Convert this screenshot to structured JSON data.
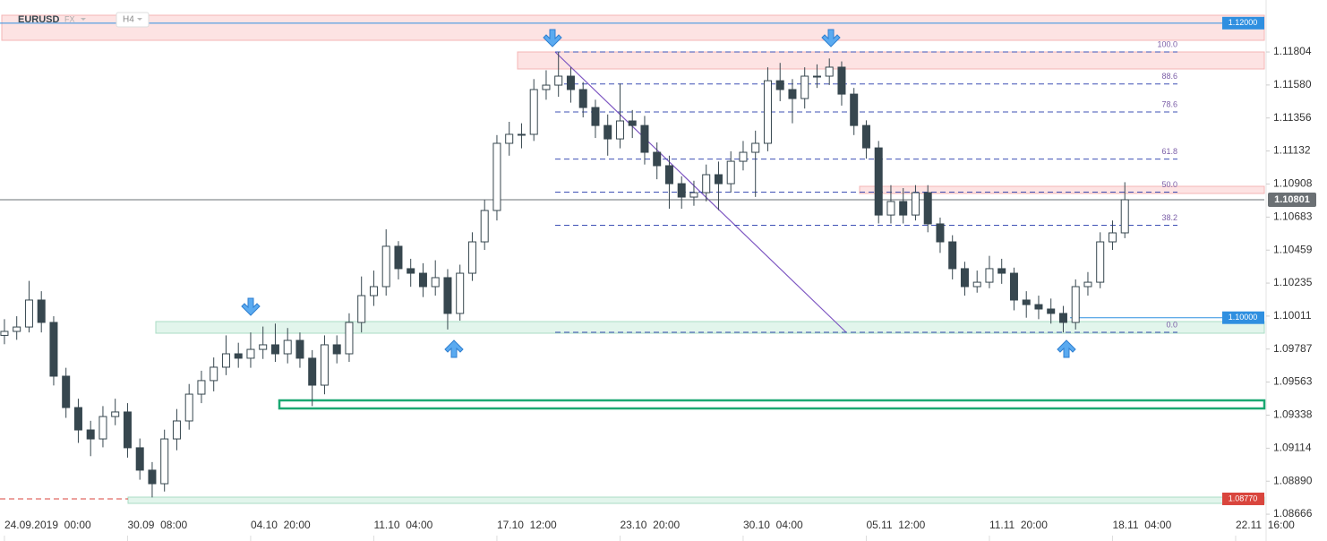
{
  "header": {
    "symbol": "EURUSD",
    "market": "FX",
    "interval": "H4"
  },
  "chart_data": {
    "type": "candlestick",
    "color": "#37474f",
    "ylim": [
      1.08484,
      1.12157
    ],
    "yticks": [
      1.11804,
      {
        "value": 1.1158,
        "label": "1.11580"
      },
      1.11356,
      1.11132,
      1.10908,
      1.10683,
      1.10459,
      1.10235,
      1.10011,
      1.09787,
      1.09563,
      1.09338,
      1.09114,
      {
        "value": 1.0889,
        "label": "1.08890"
      },
      1.08666
    ],
    "xlim": [
      -0.36,
      102.33
    ],
    "xticks": [
      {
        "value": 0,
        "label": "24.09.2019  00:00"
      },
      {
        "value": 10,
        "label": "30.09  08:00"
      },
      {
        "value": 20,
        "label": "04.10  20:00"
      },
      {
        "value": 30,
        "label": "11.10  04:00"
      },
      {
        "value": 40,
        "label": "17.10  12:00"
      },
      {
        "value": 50,
        "label": "23.10  20:00"
      },
      {
        "value": 60,
        "label": "30.10  04:00"
      },
      {
        "value": 70,
        "label": "05.11  12:00"
      },
      {
        "value": 80,
        "label": "11.11  20:00"
      },
      {
        "value": 90,
        "label": "18.11  04:00"
      },
      {
        "value": 100,
        "label": "22.11  16:00"
      }
    ],
    "open": [
      1.0988,
      1.09907,
      1.09937,
      1.1012,
      1.09968,
      1.09603,
      1.0939,
      1.09238,
      1.09177,
      1.09329,
      1.0936,
      1.09117,
      1.08965,
      1.08873,
      1.09177,
      1.09299,
      1.09481,
      1.09573,
      1.09664,
      1.09755,
      1.09725,
      1.09785,
      1.09816,
      1.09755,
      1.09846,
      1.09725,
      1.09542,
      1.09816,
      1.09755,
      1.09968,
      1.1015,
      1.10211,
      1.10485,
      1.10333,
      1.10302,
      1.10211,
      1.10272,
      1.10029,
      1.10302,
      1.10515,
      1.10728,
      1.11184,
      1.11245,
      1.11245,
      1.11549,
      1.11579,
      1.1164,
      1.11549,
      1.11427,
      1.11305,
      1.11214,
      1.11336,
      1.11305,
      1.11123,
      1.11032,
      1.1091,
      1.10819,
      1.10849,
      1.10971,
      1.1091,
      1.11062,
      1.11123,
      1.11184,
      1.11609,
      1.11549,
      1.11488,
      1.1164,
      1.1164,
      1.11701,
      1.11518,
      1.11305,
      1.11153,
      1.10697,
      1.10789,
      1.10697,
      1.10849,
      1.10637,
      1.10515,
      1.10333,
      1.10211,
      1.10241,
      1.10333,
      1.10302,
      1.1012,
      1.10089,
      1.10059,
      1.10029,
      1.09968,
      1.10211,
      1.10241,
      1.10515,
      1.10576
    ],
    "high": [
      1.0999,
      1.1001,
      1.1025,
      1.1018,
      1.1001,
      1.0966,
      1.0945,
      1.093,
      1.094,
      1.0945,
      1.0942,
      1.0918,
      1.0902,
      1.0924,
      1.0938,
      1.0955,
      1.0964,
      1.0973,
      1.0988,
      1.0983,
      1.099,
      1.0994,
      1.0996,
      1.0993,
      1.099,
      1.0978,
      1.0988,
      1.0988,
      1.1003,
      1.1028,
      1.1032,
      1.106,
      1.1052,
      1.104,
      1.1037,
      1.1039,
      1.1033,
      1.1036,
      1.1058,
      1.108,
      1.1124,
      1.1133,
      1.1132,
      1.1162,
      1.1168,
      1.11804,
      1.117,
      1.116,
      1.1148,
      1.1138,
      1.1159,
      1.1141,
      1.1137,
      1.1119,
      1.111,
      1.1096,
      1.1093,
      1.1104,
      1.1106,
      1.1113,
      1.112,
      1.1127,
      1.117,
      1.1173,
      1.1162,
      1.117,
      1.1172,
      1.1176,
      1.1174,
      1.1156,
      1.1134,
      1.112,
      1.109,
      1.1088,
      1.109,
      1.109,
      1.1068,
      1.1056,
      1.1038,
      1.1032,
      1.1042,
      1.104,
      1.1034,
      1.1018,
      1.1015,
      1.1013,
      1.1008,
      1.1026,
      1.1031,
      1.1058,
      1.1066,
      1.1092
    ],
    "low": [
      1.0982,
      1.0985,
      1.099,
      1.099,
      1.0954,
      1.0932,
      1.0915,
      1.0906,
      1.0912,
      1.0927,
      1.0905,
      1.089,
      1.0878,
      1.0882,
      1.091,
      1.0924,
      1.0942,
      1.095,
      1.0961,
      1.0966,
      1.0966,
      1.0972,
      1.097,
      1.0969,
      1.0966,
      1.094,
      1.0948,
      1.0969,
      1.097,
      1.099,
      1.1008,
      1.1015,
      1.1026,
      1.1021,
      1.1014,
      1.1015,
      1.0992,
      1.0998,
      1.1025,
      1.1046,
      1.1066,
      1.111,
      1.1115,
      1.112,
      1.1148,
      1.115,
      1.1146,
      1.1136,
      1.1122,
      1.111,
      1.1115,
      1.1122,
      1.1104,
      1.1094,
      1.1074,
      1.1074,
      1.1076,
      1.1079,
      1.1073,
      1.1085,
      1.11,
      1.1082,
      1.1113,
      1.1147,
      1.1132,
      1.1142,
      1.1156,
      1.1158,
      1.1144,
      1.1124,
      1.1108,
      1.1064,
      1.1064,
      1.1064,
      1.1066,
      1.1058,
      1.1044,
      1.1026,
      1.1015,
      1.1017,
      1.102,
      1.1023,
      1.1005,
      1.1,
      1.0999,
      1.0996,
      1.099,
      1.0992,
      1.1015,
      1.102,
      1.1046,
      1.1054
    ],
    "close": [
      1.09907,
      1.09937,
      1.1012,
      1.09968,
      1.09603,
      1.0939,
      1.09238,
      1.09177,
      1.09329,
      1.0936,
      1.09117,
      1.08965,
      1.08873,
      1.09177,
      1.09299,
      1.09481,
      1.09573,
      1.09664,
      1.09755,
      1.09725,
      1.09785,
      1.09816,
      1.09755,
      1.09846,
      1.09725,
      1.09542,
      1.09816,
      1.09755,
      1.09968,
      1.1015,
      1.10211,
      1.10485,
      1.10333,
      1.10302,
      1.10211,
      1.10272,
      1.10029,
      1.10302,
      1.10515,
      1.10728,
      1.11184,
      1.11245,
      1.11245,
      1.11549,
      1.11579,
      1.1164,
      1.11549,
      1.11427,
      1.11305,
      1.11214,
      1.11336,
      1.11305,
      1.11123,
      1.11032,
      1.1091,
      1.10819,
      1.10849,
      1.10971,
      1.1091,
      1.11062,
      1.11123,
      1.11184,
      1.11609,
      1.11549,
      1.11488,
      1.1164,
      1.1164,
      1.11701,
      1.11518,
      1.11305,
      1.11153,
      1.10697,
      1.10789,
      1.10697,
      1.10849,
      1.10637,
      1.10515,
      1.10333,
      1.10211,
      1.10241,
      1.10333,
      1.10302,
      1.1012,
      1.10089,
      1.10059,
      1.10029,
      1.09968,
      1.10211,
      1.10241,
      1.10515,
      1.10576,
      1.10801
    ],
    "fibonacci": {
      "high": 1.11804,
      "low": 1.09901,
      "color": "#3f51b5",
      "label_color": "#7b5ea7",
      "levels": [
        {
          "value": 100,
          "label": "100.0"
        },
        {
          "value": 88.6,
          "label": "88.6"
        },
        {
          "value": 78.6,
          "label": "78.6"
        },
        {
          "value": 61.8,
          "label": "61.8"
        },
        {
          "value": 50,
          "label": "50.0"
        },
        {
          "value": 38.2,
          "label": "38.2"
        },
        {
          "value": 0,
          "label": "0.0"
        }
      ]
    },
    "levels": [
      {
        "value": 1.12,
        "label": "1.12000",
        "color": "#2f8fe0",
        "line": "solid",
        "box": "plot"
      },
      {
        "value": 1.10801,
        "label": "1.10801",
        "color": "#6b7074",
        "line": "solid",
        "box": "axis"
      },
      {
        "value": 1.1,
        "label": "1.10000",
        "color": "#2f8fe0",
        "line": "solid",
        "box": "plot"
      },
      {
        "value": 1.0877,
        "label": "1.08770",
        "color": "#d9453d",
        "line": "dashed",
        "box": "plot"
      }
    ]
  }
}
